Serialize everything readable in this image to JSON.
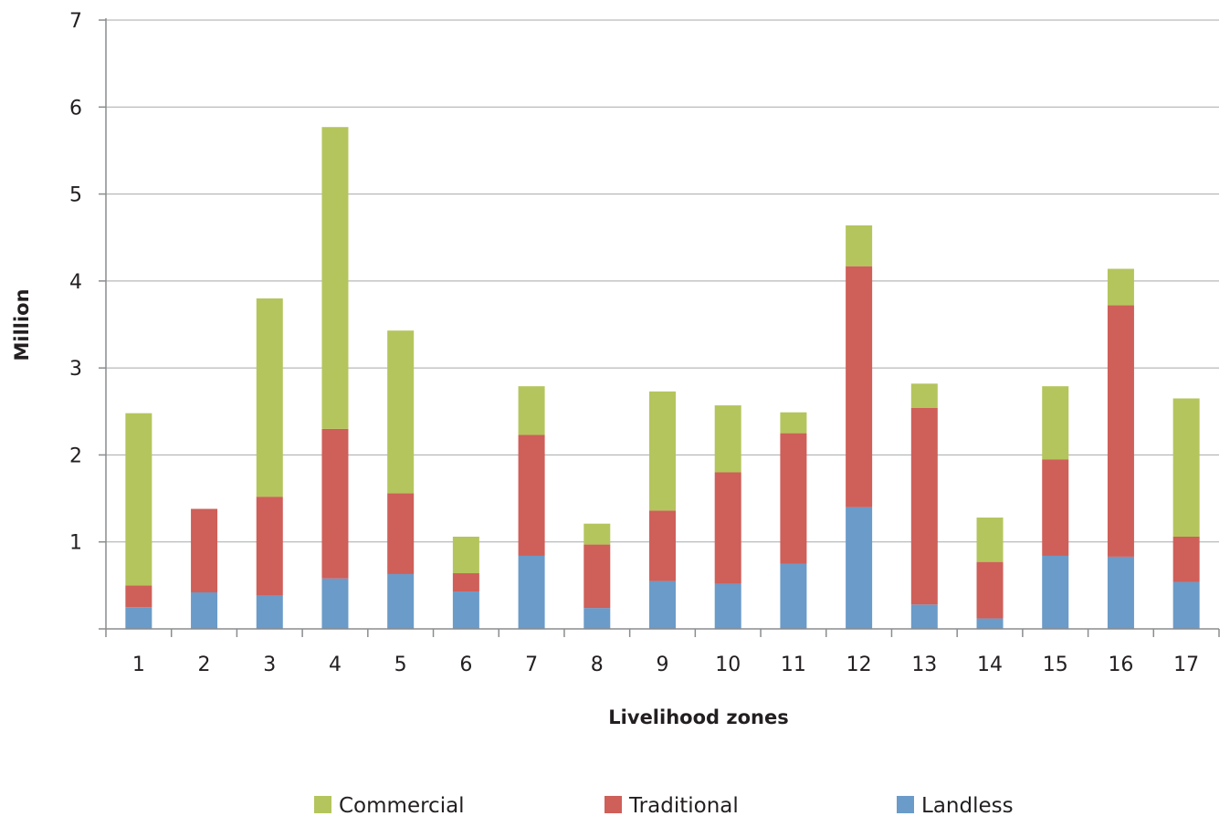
{
  "chart_data": {
    "type": "bar",
    "stacked": true,
    "title": "",
    "xlabel": "Livelihood zones",
    "ylabel": "Million",
    "ylim": [
      0,
      7
    ],
    "yticks": [
      "1",
      "2",
      "3",
      "4",
      "5",
      "6",
      "7"
    ],
    "categories": [
      "1",
      "2",
      "3",
      "4",
      "5",
      "6",
      "7",
      "8",
      "9",
      "10",
      "11",
      "12",
      "13",
      "14",
      "15",
      "16",
      "17"
    ],
    "grid": "horizontal",
    "legend_position": "bottom",
    "series": [
      {
        "name": "Landless",
        "color": "#6a9bc9",
        "values": [
          0.25,
          0.42,
          0.38,
          0.58,
          0.63,
          0.43,
          0.84,
          0.24,
          0.55,
          0.52,
          0.75,
          1.4,
          0.28,
          0.12,
          0.84,
          0.83,
          0.54
        ]
      },
      {
        "name": "Traditional",
        "color": "#cf5f59",
        "values": [
          0.25,
          0.96,
          1.14,
          1.72,
          0.93,
          0.21,
          1.39,
          0.73,
          0.81,
          1.28,
          1.5,
          2.77,
          2.26,
          0.65,
          1.11,
          2.89,
          0.52
        ]
      },
      {
        "name": "Commercial",
        "color": "#b5c55d",
        "values": [
          1.98,
          0.0,
          2.28,
          3.47,
          1.87,
          0.42,
          0.56,
          0.24,
          1.37,
          0.77,
          0.24,
          0.47,
          0.28,
          0.51,
          0.84,
          0.42,
          1.59
        ]
      }
    ],
    "legend": [
      {
        "name": "Commercial",
        "color": "#b5c55d"
      },
      {
        "name": "Traditional",
        "color": "#cf5f59"
      },
      {
        "name": "Landless",
        "color": "#6a9bc9"
      }
    ]
  }
}
